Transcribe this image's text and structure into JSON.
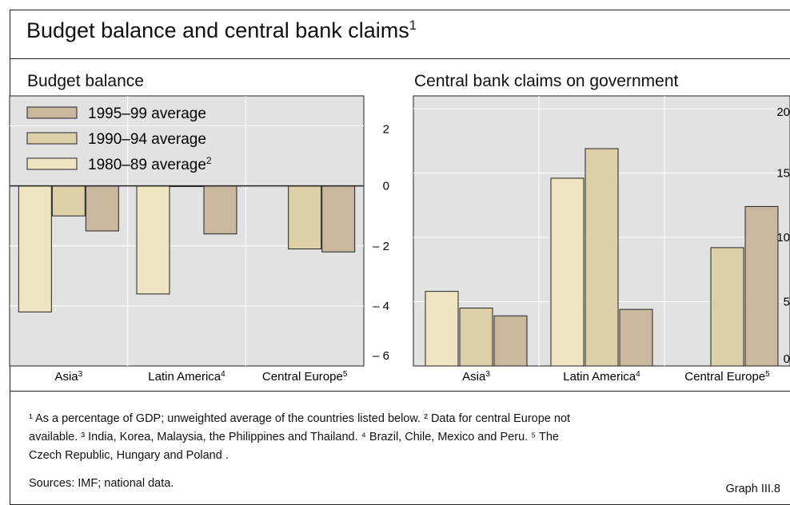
{
  "title": "Budget balance and central bank claims",
  "title_note": "1",
  "colors": {
    "c1995": "#c9b79e",
    "c1990": "#ddd0a8",
    "c1980": "#efe4c2",
    "panel": "#e2e2e2"
  },
  "chart_data": [
    {
      "type": "bar",
      "title": "Budget balance",
      "categories": [
        "Asia",
        "Latin America",
        "Central Europe"
      ],
      "category_notes": [
        "3",
        "4",
        "5"
      ],
      "series": [
        {
          "name": "1980–89 average",
          "note": "2",
          "values": [
            -4.2,
            -3.6,
            null
          ]
        },
        {
          "name": "1990–94 average",
          "values": [
            -1.0,
            0.0,
            -2.1
          ]
        },
        {
          "name": "1995–99 average",
          "values": [
            -1.5,
            -1.6,
            -2.2
          ]
        }
      ],
      "ylim": [
        -6,
        3
      ],
      "yticks": [
        2,
        0,
        -2,
        -4,
        -6
      ],
      "ytick_labels": [
        "2",
        "0",
        "– 2",
        "– 4",
        "– 6"
      ],
      "legend_position": "top-left",
      "grid": true
    },
    {
      "type": "bar",
      "title": "Central bank claims on government",
      "categories": [
        "Asia",
        "Latin America",
        "Central Europe"
      ],
      "category_notes": [
        "3",
        "4",
        "5"
      ],
      "series": [
        {
          "name": "1980–89 average",
          "values": [
            5.8,
            14.6,
            null
          ]
        },
        {
          "name": "1990–94 average",
          "values": [
            4.5,
            16.9,
            9.2
          ]
        },
        {
          "name": "1995–99 average",
          "values": [
            3.9,
            4.4,
            12.4
          ]
        }
      ],
      "ylim": [
        0,
        21
      ],
      "yticks": [
        20,
        15,
        10,
        5,
        0
      ],
      "ytick_labels": [
        "20",
        "15",
        "10",
        "5",
        "0"
      ],
      "grid": true
    }
  ],
  "footnotes": {
    "line1": "¹ As a percentage of GDP; unweighted average of the countries listed below.   ² Data for central Europe not",
    "line2": "available.   ³ India, Korea, Malaysia, the Philippines and Thailand.   ⁴ Brazil, Chile, Mexico and Peru.   ⁵ The",
    "line3": "Czech Republic, Hungary and Poland ."
  },
  "sources": "Sources: IMF; national data.",
  "graph_label": "Graph III.8"
}
